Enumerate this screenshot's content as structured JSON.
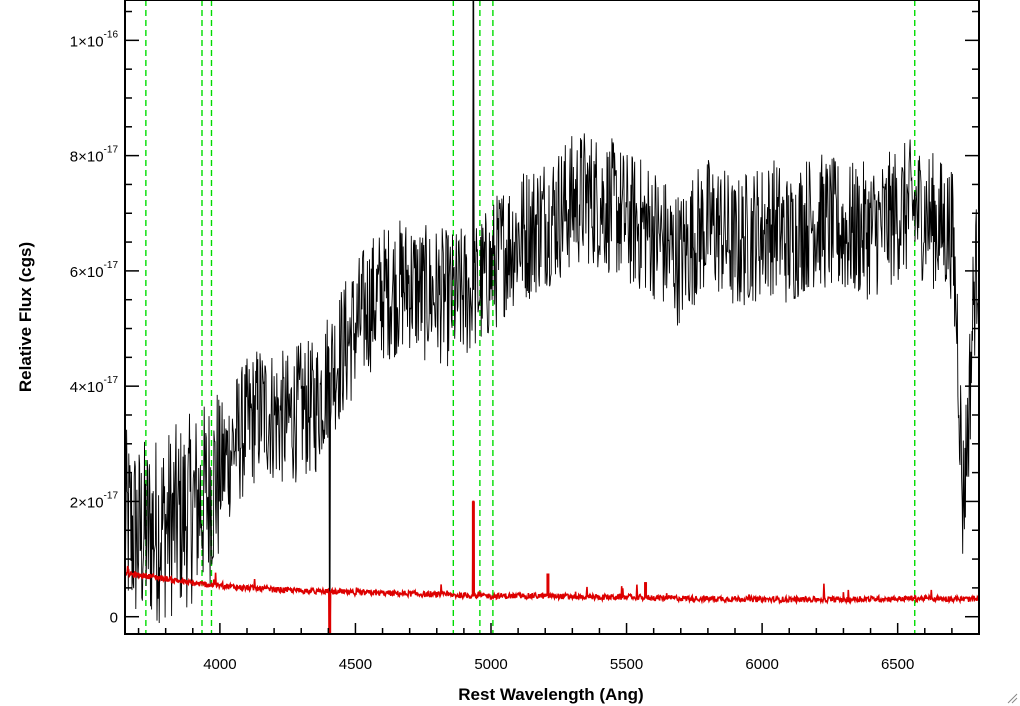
{
  "chart_data": {
    "type": "line",
    "xlabel": "Rest Wavelength (Ang)",
    "ylabel": "Relative Flux (cgs)",
    "xlim": [
      3650,
      6800
    ],
    "ylim": [
      -3e-18,
      1.07e-16
    ],
    "grid": false,
    "x_ticks": [
      {
        "value": 4000,
        "label": "4000"
      },
      {
        "value": 4500,
        "label": "4500"
      },
      {
        "value": 5000,
        "label": "5000"
      },
      {
        "value": 5500,
        "label": "5500"
      },
      {
        "value": 6000,
        "label": "6000"
      },
      {
        "value": 6500,
        "label": "6500"
      }
    ],
    "y_ticks": [
      {
        "value": 0,
        "mantissa": "0",
        "exponent": ""
      },
      {
        "value": 2e-17,
        "mantissa": "2×10",
        "exponent": "-17"
      },
      {
        "value": 4e-17,
        "mantissa": "4×10",
        "exponent": "-17"
      },
      {
        "value": 6e-17,
        "mantissa": "6×10",
        "exponent": "-17"
      },
      {
        "value": 8e-17,
        "mantissa": "8×10",
        "exponent": "-17"
      },
      {
        "value": 1e-16,
        "mantissa": "1×10",
        "exponent": "-16"
      }
    ],
    "reference_lines": {
      "color": "#00dd00",
      "style": "dashed",
      "wavelengths": [
        3727,
        3934,
        3969,
        4861,
        4959,
        5007,
        6563
      ]
    },
    "series": [
      {
        "color": "#000000",
        "noise": "high",
        "spikes": [
          {
            "x": 4405,
            "y": 0.0
          },
          {
            "x": 4935,
            "y": 1.07e-16
          }
        ],
        "x": [
          3650,
          3700,
          3750,
          3800,
          3850,
          3900,
          3950,
          4000,
          4050,
          4100,
          4150,
          4200,
          4250,
          4300,
          4350,
          4400,
          4450,
          4500,
          4550,
          4600,
          4650,
          4700,
          4750,
          4800,
          4850,
          4900,
          4950,
          5000,
          5050,
          5100,
          5150,
          5200,
          5250,
          5300,
          5350,
          5400,
          5450,
          5500,
          5550,
          5600,
          5650,
          5700,
          5750,
          5800,
          5850,
          5900,
          5950,
          6000,
          6050,
          6100,
          6150,
          6200,
          6250,
          6300,
          6350,
          6400,
          6450,
          6500,
          6550,
          6600,
          6650,
          6700,
          6720,
          6740,
          6760,
          6780,
          6800
        ],
        "y": [
          1.6e-17,
          1.4e-17,
          1.5e-17,
          1.6e-17,
          1.7e-17,
          1.9e-17,
          2.1e-17,
          2.5e-17,
          3e-17,
          3.3e-17,
          3.6e-17,
          3.5e-17,
          3.4e-17,
          3.6e-17,
          3.6e-17,
          4.2e-17,
          4.6e-17,
          5e-17,
          5.4e-17,
          5.6e-17,
          5.7e-17,
          5.8e-17,
          5.6e-17,
          5.6e-17,
          5.5e-17,
          5.6e-17,
          5.7e-17,
          6e-17,
          6.4e-17,
          6.6e-17,
          6.7e-17,
          6.9e-17,
          7e-17,
          7.2e-17,
          7.3e-17,
          7.2e-17,
          7.1e-17,
          6.9e-17,
          6.8e-17,
          6.7e-17,
          6.4e-17,
          6.2e-17,
          6.6e-17,
          6.8e-17,
          6.7e-17,
          6.4e-17,
          6.6e-17,
          6.7e-17,
          6.8e-17,
          6.5e-17,
          6.8e-17,
          6.9e-17,
          6.8e-17,
          6.7e-17,
          6.7e-17,
          6.7e-17,
          6.8e-17,
          7e-17,
          7.1e-17,
          7e-17,
          6.8e-17,
          6.7e-17,
          5e-17,
          2e-17,
          3.3e-17,
          5.5e-17,
          6.5e-17
        ]
      },
      {
        "color": "#dd0000",
        "noise": "low",
        "spikes": [
          {
            "x": 4405,
            "y": -3e-18
          },
          {
            "x": 4935,
            "y": 2e-17
          },
          {
            "x": 5210,
            "y": 7.5e-18
          },
          {
            "x": 5570,
            "y": 6e-18
          }
        ],
        "x": [
          3650,
          3700,
          3750,
          3800,
          3850,
          3900,
          3950,
          4000,
          4100,
          4200,
          4300,
          4400,
          4500,
          4600,
          4700,
          4800,
          4900,
          5000,
          5100,
          5200,
          5300,
          5400,
          5500,
          5600,
          5700,
          5800,
          5900,
          6000,
          6100,
          6200,
          6300,
          6400,
          6500,
          6600,
          6700,
          6800
        ],
        "y": [
          7.5e-18,
          7.2e-18,
          7e-18,
          6.6e-18,
          6.2e-18,
          5.8e-18,
          5.6e-18,
          5.4e-18,
          5e-18,
          4.7e-18,
          4.5e-18,
          4.3e-18,
          4.2e-18,
          4.1e-18,
          4e-18,
          3.8e-18,
          3.7e-18,
          3.6e-18,
          3.6e-18,
          3.6e-18,
          3.5e-18,
          3.4e-18,
          3.4e-18,
          3.3e-18,
          3.2e-18,
          3.1e-18,
          3.1e-18,
          3e-18,
          3e-18,
          3e-18,
          3e-18,
          3.1e-18,
          3.1e-18,
          3.2e-18,
          3.1e-18,
          3e-18
        ]
      }
    ]
  }
}
